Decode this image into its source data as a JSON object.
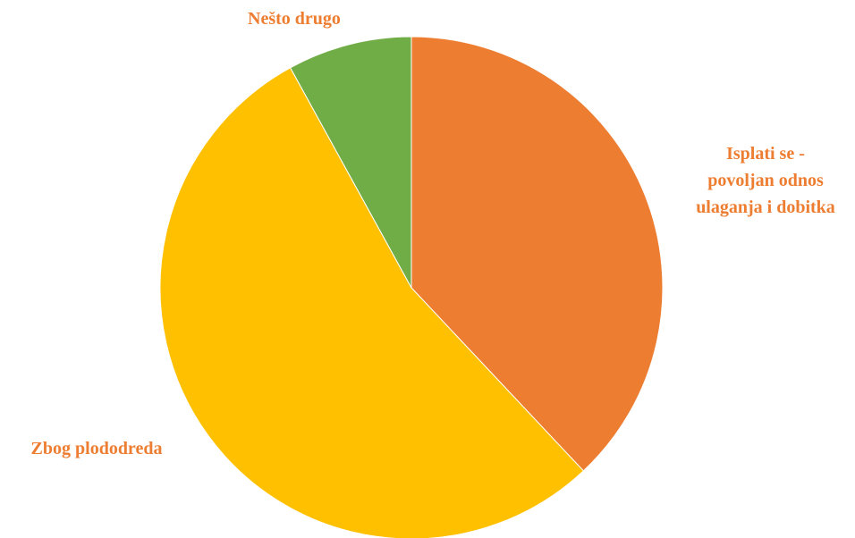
{
  "chart_data": {
    "type": "pie",
    "start_angle_deg": 0,
    "direction": "clockwise",
    "slices": [
      {
        "label_lines": [
          "Isplati se -",
          "povoljan odnos",
          "ulaganja i dobitka"
        ],
        "value": 38,
        "color": "#ED7D31"
      },
      {
        "label_lines": [
          "Zbog plododreda"
        ],
        "value": 54,
        "color": "#FFC000"
      },
      {
        "label_lines": [
          "Nešto drugo"
        ],
        "value": 8,
        "color": "#70AD47"
      }
    ],
    "label_color": "#ED7D31",
    "legend": "none"
  }
}
